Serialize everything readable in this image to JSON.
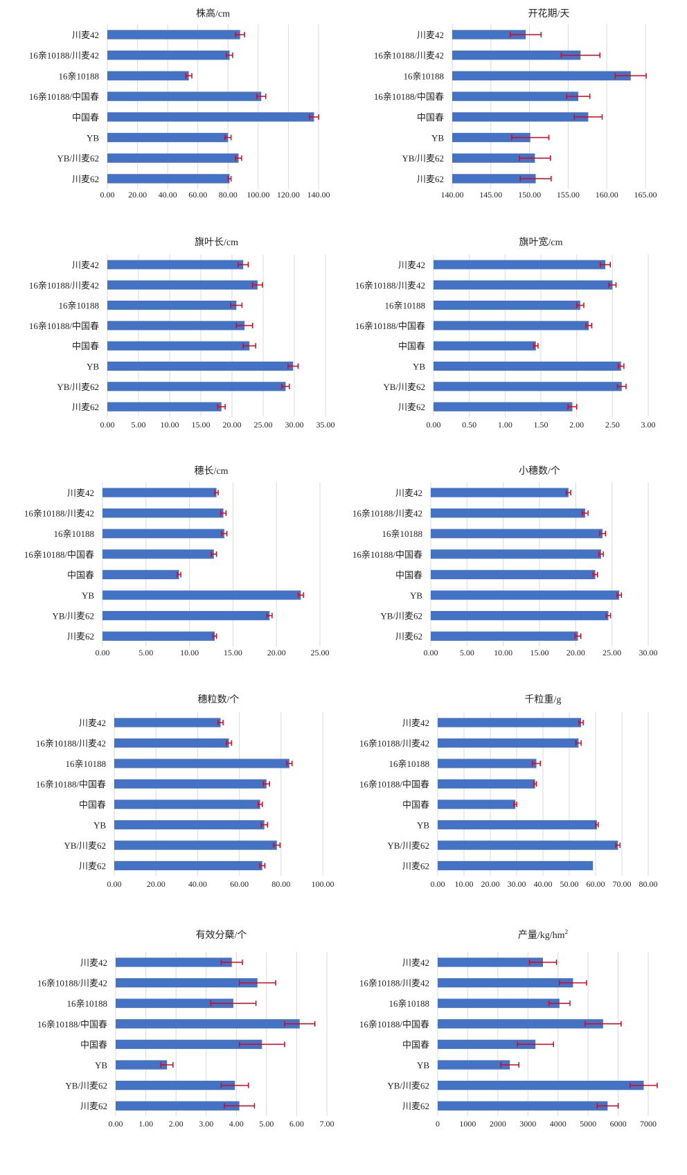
{
  "colors": {
    "bar": "#4472C4",
    "error": "#E3001B",
    "grid": "#D9D9D9",
    "text": "#222222"
  },
  "chart_data": [
    {
      "type": "bar",
      "orientation": "horizontal",
      "title": "株高/cm",
      "categories": [
        "川麦42",
        "16亲10188/川麦42",
        "16亲10188",
        "16亲10188/中国春",
        "中国春",
        "YB",
        "YB/川麦62",
        "川麦62"
      ],
      "values": [
        88,
        81,
        54,
        102,
        137,
        80,
        87,
        81
      ],
      "errors": [
        3,
        2,
        2,
        3,
        3,
        2,
        2,
        1
      ],
      "xlim": [
        0,
        140
      ],
      "ticks": [
        0,
        20,
        40,
        60,
        80,
        100,
        120,
        140
      ],
      "tick_labels": [
        "0.00",
        "20.00",
        "40.00",
        "60.00",
        "80.00",
        "100.00",
        "120.00",
        "140.00"
      ],
      "grid": true
    },
    {
      "type": "bar",
      "orientation": "horizontal",
      "title": "开花期/天",
      "categories": [
        "川麦42",
        "16亲10188/川麦42",
        "16亲10188",
        "16亲10188/中国春",
        "中国春",
        "YB",
        "YB/川麦62",
        "川麦62"
      ],
      "values": [
        149.5,
        156.6,
        163.1,
        156.3,
        157.6,
        150.1,
        150.7,
        150.8
      ],
      "errors": [
        2,
        2.5,
        2,
        1.5,
        1.8,
        2.4,
        2,
        2
      ],
      "xlim": [
        140,
        165
      ],
      "ticks": [
        140,
        145,
        150,
        155,
        160,
        165
      ],
      "tick_labels": [
        "140.00",
        "145.00",
        "150.00",
        "155.00",
        "160.00",
        "165.00"
      ],
      "grid": true
    },
    {
      "type": "bar",
      "orientation": "horizontal",
      "title": "旗叶长/cm",
      "categories": [
        "川麦42",
        "16亲10188/川麦42",
        "16亲10188",
        "16亲10188/中国春",
        "中国春",
        "YB",
        "YB/川麦62",
        "川麦62"
      ],
      "values": [
        21.8,
        24.1,
        20.7,
        22.0,
        22.8,
        29.8,
        28.6,
        18.3
      ],
      "errors": [
        0.8,
        0.8,
        0.9,
        1.3,
        1.0,
        0.8,
        0.6,
        0.6
      ],
      "xlim": [
        0,
        35
      ],
      "ticks": [
        0,
        5,
        10,
        15,
        20,
        25,
        30,
        35
      ],
      "tick_labels": [
        "0.00",
        "5.00",
        "10.00",
        "15.00",
        "20.00",
        "25.00",
        "30.00",
        "35.00"
      ],
      "grid": true
    },
    {
      "type": "bar",
      "orientation": "horizontal",
      "title": "旗叶宽/cm",
      "categories": [
        "川麦42",
        "16亲10188/川麦42",
        "16亲10188",
        "16亲10188/中国春",
        "中国春",
        "YB",
        "YB/川麦62",
        "川麦62"
      ],
      "values": [
        2.4,
        2.5,
        2.05,
        2.17,
        1.43,
        2.62,
        2.63,
        1.94
      ],
      "errors": [
        0.07,
        0.05,
        0.05,
        0.04,
        0.03,
        0.04,
        0.06,
        0.06
      ],
      "xlim": [
        0,
        3
      ],
      "ticks": [
        0,
        0.5,
        1,
        1.5,
        2,
        2.5,
        3
      ],
      "tick_labels": [
        "0.00",
        "0.50",
        "1.00",
        "1.50",
        "2.00",
        "2.50",
        "3.00"
      ],
      "grid": true
    },
    {
      "type": "bar",
      "orientation": "horizontal",
      "title": "穗长/cm",
      "categories": [
        "川麦42",
        "16亲10188/川麦42",
        "16亲10188",
        "16亲10188/中国春",
        "中国春",
        "YB",
        "YB/川麦62",
        "川麦62"
      ],
      "values": [
        13.1,
        13.9,
        14.0,
        12.8,
        8.8,
        22.8,
        19.2,
        12.9
      ],
      "errors": [
        0.2,
        0.3,
        0.3,
        0.3,
        0.2,
        0.3,
        0.3,
        0.2
      ],
      "xlim": [
        0,
        25
      ],
      "ticks": [
        0,
        5,
        10,
        15,
        20,
        25
      ],
      "tick_labels": [
        "0.00",
        "5.00",
        "10.00",
        "15.00",
        "20.00",
        "25.00"
      ],
      "grid": true
    },
    {
      "type": "bar",
      "orientation": "horizontal",
      "title": "小穗数/个",
      "categories": [
        "川麦42",
        "16亲10188/川麦42",
        "16亲10188",
        "16亲10188/中国春",
        "中国春",
        "YB",
        "YB/川麦62",
        "川麦62"
      ],
      "values": [
        19.0,
        21.3,
        23.7,
        23.5,
        22.7,
        26.0,
        24.5,
        20.3
      ],
      "errors": [
        0.3,
        0.4,
        0.4,
        0.3,
        0.3,
        0.3,
        0.3,
        0.4
      ],
      "xlim": [
        0,
        30
      ],
      "ticks": [
        0,
        5,
        10,
        15,
        20,
        25,
        30
      ],
      "tick_labels": [
        "0.00",
        "5.00",
        "10.00",
        "15.00",
        "20.00",
        "25.00",
        "30.00"
      ],
      "grid": true
    },
    {
      "type": "bar",
      "orientation": "horizontal",
      "title": "穗粒数/个",
      "categories": [
        "川麦42",
        "16亲10188/川麦42",
        "16亲10188",
        "16亲10188/中国春",
        "中国春",
        "YB",
        "YB/川麦62",
        "川麦62"
      ],
      "values": [
        51,
        55,
        84,
        73,
        70,
        72,
        78,
        71
      ],
      "errors": [
        1.2,
        1.2,
        1.3,
        1.5,
        1.0,
        1.5,
        1.5,
        1.2
      ],
      "xlim": [
        0,
        100
      ],
      "ticks": [
        0,
        20,
        40,
        60,
        80,
        100
      ],
      "tick_labels": [
        "0.00",
        "20.00",
        "40.00",
        "60.00",
        "80.00",
        "100.00"
      ],
      "grid": true
    },
    {
      "type": "bar",
      "orientation": "horizontal",
      "title": "千粒重/g",
      "categories": [
        "川麦42",
        "16亲10188/川麦42",
        "16亲10188",
        "16亲10188/中国春",
        "中国春",
        "YB",
        "YB/川麦62",
        "川麦62"
      ],
      "values": [
        54.5,
        53.5,
        37.5,
        37.0,
        29.5,
        60.5,
        68.5,
        59.0
      ],
      "errors": [
        0.8,
        1.0,
        1.5,
        0.5,
        0.5,
        0.5,
        0.8,
        0
      ],
      "xlim": [
        0,
        80
      ],
      "ticks": [
        0,
        10,
        20,
        30,
        40,
        50,
        60,
        70,
        80
      ],
      "tick_labels": [
        "0.00",
        "10.00",
        "20.00",
        "30.00",
        "40.00",
        "50.00",
        "60.00",
        "70.00",
        "80.00"
      ],
      "grid": true
    },
    {
      "type": "bar",
      "orientation": "horizontal",
      "title": "有效分蘖/个",
      "categories": [
        "川麦42",
        "16亲10188/川麦42",
        "16亲10188",
        "16亲10188/中国春",
        "中国春",
        "YB",
        "YB/川麦62",
        "川麦62"
      ],
      "values": [
        3.85,
        4.7,
        3.9,
        6.1,
        4.85,
        1.7,
        3.95,
        4.1
      ],
      "errors": [
        0.35,
        0.6,
        0.75,
        0.5,
        0.75,
        0.2,
        0.45,
        0.5
      ],
      "xlim": [
        0,
        7
      ],
      "ticks": [
        0,
        1,
        2,
        3,
        4,
        5,
        6,
        7
      ],
      "tick_labels": [
        "0.00",
        "1.00",
        "2.00",
        "3.00",
        "4.00",
        "5.00",
        "6.00",
        "7.00"
      ],
      "grid": true
    },
    {
      "type": "bar",
      "orientation": "horizontal",
      "title": "产量/kg/hm",
      "title_sup": "2",
      "categories": [
        "川麦42",
        "16亲10188/川麦42",
        "16亲10188",
        "16亲10188/中国春",
        "中国春",
        "YB",
        "YB/川麦62",
        "川麦62"
      ],
      "values": [
        3500,
        4500,
        4050,
        5500,
        3250,
        2400,
        6850,
        5650
      ],
      "errors": [
        450,
        450,
        350,
        600,
        600,
        300,
        450,
        350
      ],
      "xlim": [
        0,
        7000
      ],
      "ticks": [
        0,
        1000,
        2000,
        3000,
        4000,
        5000,
        6000,
        7000
      ],
      "tick_labels": [
        "0",
        "1000",
        "2000",
        "3000",
        "4000",
        "5000",
        "6000",
        "7000"
      ],
      "grid": true
    }
  ]
}
